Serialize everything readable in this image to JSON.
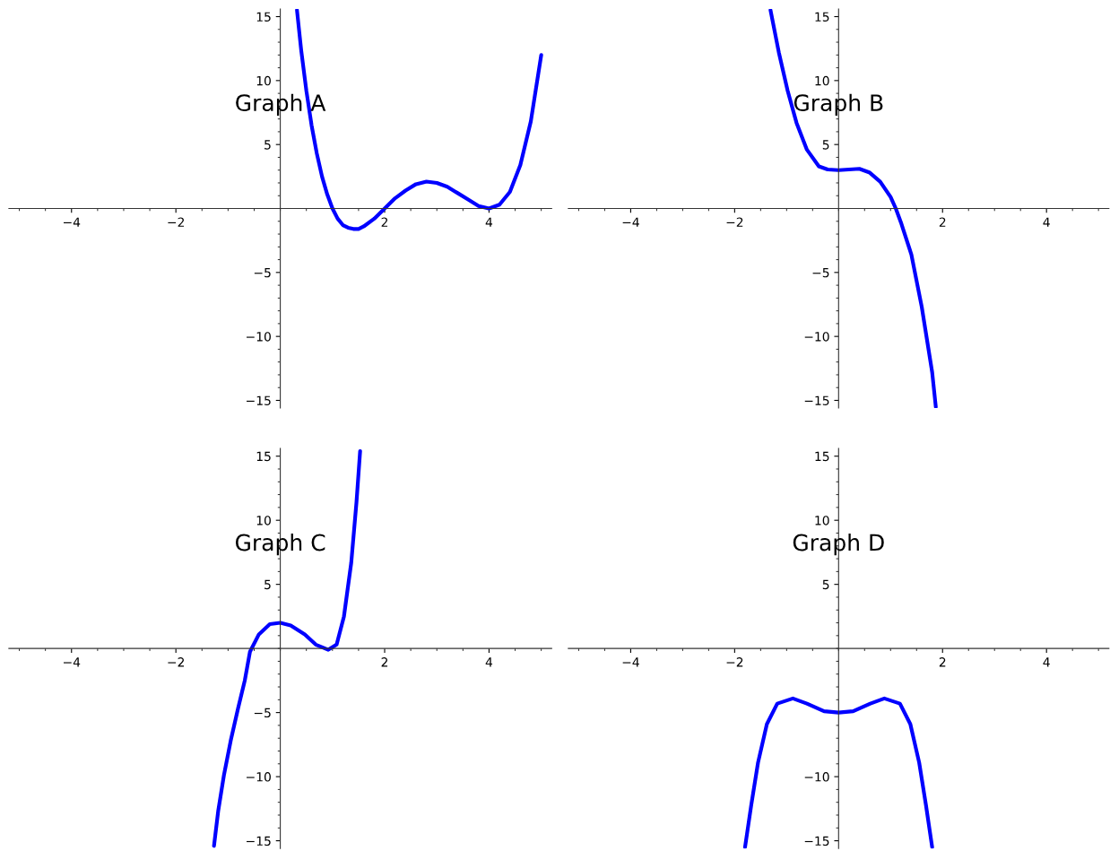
{
  "chart_data": [
    {
      "type": "line",
      "title": "Graph A",
      "xlim": [
        -5.2,
        5.2
      ],
      "ylim": [
        -15.6,
        15.6
      ],
      "xticks": [
        -4,
        -2,
        2,
        4
      ],
      "yticks": [
        {
          "value": -15,
          "label": "−15"
        },
        {
          "value": -10,
          "label": "−10"
        },
        {
          "value": -5,
          "label": "−5"
        },
        5,
        10,
        15
      ],
      "grid": false,
      "series": [
        {
          "color": "#0000ff",
          "x": [
            0.32,
            0.4,
            0.5,
            0.6,
            0.7,
            0.8,
            0.9,
            1.0,
            1.1,
            1.2,
            1.3,
            1.4,
            1.5,
            1.6,
            1.8,
            2.0,
            2.2,
            2.4,
            2.6,
            2.8,
            3.0,
            3.2,
            3.4,
            3.6,
            3.8,
            4.0,
            4.2,
            4.4,
            4.6,
            4.8,
            5.0
          ],
          "values": [
            15.5,
            12.4,
            9.2,
            6.5,
            4.3,
            2.5,
            1.1,
            0,
            -0.8,
            -1.3,
            -1.5,
            -1.6,
            -1.6,
            -1.4,
            -0.8,
            0,
            0.8,
            1.4,
            1.9,
            2.1,
            2.0,
            1.7,
            1.2,
            0.7,
            0.2,
            0,
            0.3,
            1.3,
            3.4,
            6.8,
            12.0
          ]
        }
      ]
    },
    {
      "type": "line",
      "title": "Graph B",
      "xlim": [
        -5.2,
        5.2
      ],
      "ylim": [
        -15.6,
        15.6
      ],
      "xticks": [
        -4,
        -2,
        2,
        4
      ],
      "yticks": [
        {
          "value": -15,
          "label": "−15"
        },
        {
          "value": -10,
          "label": "−10"
        },
        {
          "value": -5,
          "label": "−5"
        },
        5,
        10,
        15
      ],
      "grid": false,
      "series": [
        {
          "color": "#0000ff",
          "x": [
            -1.31,
            -1.15,
            -0.98,
            -0.81,
            -0.61,
            -0.38,
            -0.21,
            0,
            0.2,
            0.4,
            0.6,
            0.8,
            1.0,
            1.1,
            1.2,
            1.4,
            1.6,
            1.8,
            1.87
          ],
          "values": [
            15.5,
            12.2,
            9.2,
            6.7,
            4.6,
            3.3,
            3.05,
            3.0,
            3.05,
            3.1,
            2.8,
            2.1,
            0.9,
            0,
            -1.1,
            -3.6,
            -7.7,
            -12.8,
            -15.5
          ]
        }
      ]
    },
    {
      "type": "line",
      "title": "Graph C",
      "xlim": [
        -5.2,
        5.2
      ],
      "ylim": [
        -15.6,
        15.6
      ],
      "xticks": [
        -4,
        -2,
        2,
        4
      ],
      "yticks": [
        {
          "value": -15,
          "label": "−15"
        },
        {
          "value": -10,
          "label": "−10"
        },
        {
          "value": -5,
          "label": "−5"
        },
        5,
        10,
        15
      ],
      "grid": false,
      "series": [
        {
          "color": "#0000ff",
          "x": [
            -1.27,
            -1.19,
            -1.08,
            -0.95,
            -0.81,
            -0.68,
            -0.58,
            -0.41,
            -0.2,
            0,
            0.2,
            0.47,
            0.68,
            0.92,
            1.08,
            1.22,
            1.36,
            1.46,
            1.53
          ],
          "values": [
            -15.4,
            -12.7,
            -9.9,
            -7.2,
            -4.7,
            -2.5,
            -0.25,
            1.1,
            1.9,
            2.0,
            1.8,
            1.1,
            0.3,
            -0.1,
            0.3,
            2.5,
            6.7,
            11.4,
            15.4
          ]
        }
      ]
    },
    {
      "type": "line",
      "title": "Graph D",
      "xlim": [
        -5.2,
        5.2
      ],
      "ylim": [
        -15.6,
        15.6
      ],
      "xticks": [
        -4,
        -2,
        2,
        4
      ],
      "yticks": [
        {
          "value": -15,
          "label": "−15"
        },
        {
          "value": -10,
          "label": "−10"
        },
        {
          "value": -5,
          "label": null
        },
        5,
        10,
        15
      ],
      "grid": false,
      "series": [
        {
          "color": "#0000ff",
          "x": [
            -1.8,
            -1.68,
            -1.55,
            -1.38,
            -1.18,
            -0.88,
            -0.61,
            -0.28,
            0,
            0.28,
            0.61,
            0.88,
            1.18,
            1.38,
            1.55,
            1.68,
            1.8
          ],
          "values": [
            -15.5,
            -12.2,
            -8.9,
            -5.9,
            -4.3,
            -3.9,
            -4.3,
            -4.9,
            -5.0,
            -4.9,
            -4.3,
            -3.9,
            -4.3,
            -5.9,
            -8.9,
            -12.2,
            -15.5
          ]
        }
      ]
    }
  ]
}
